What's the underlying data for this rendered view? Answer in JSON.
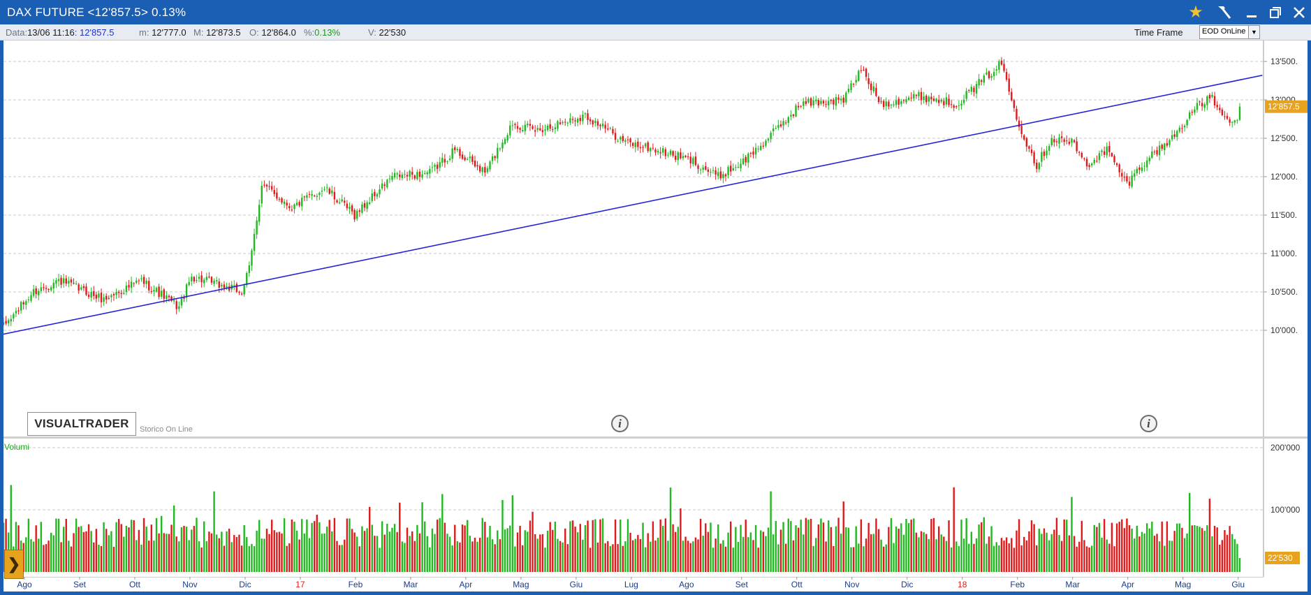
{
  "window": {
    "title": "DAX FUTURE <12'857.5> 0.13%",
    "icons": [
      "star-icon",
      "hammer-icon",
      "minimize-icon",
      "restore-icon",
      "close-icon"
    ]
  },
  "infobar": {
    "data_label": "Data:",
    "data_value": "13/06 11:16",
    "last_value": ": 12'857.5",
    "min_label": "m:",
    "min_value": "12'777.0",
    "max_label": "M:",
    "max_value": "12'873.5",
    "open_label": "O:",
    "open_value": "12'864.0",
    "pct_label": "%:",
    "pct_value": "0.13%",
    "vol_label": "V:",
    "vol_value": "22'530",
    "timeframe_label": "Time Frame",
    "timeframe_value": "EOD OnLine"
  },
  "colors": {
    "up": "#22b822",
    "down": "#e01a1a",
    "trendline": "#2424d8",
    "last_price_tag": "#e7a21e",
    "title_bar": "#1b5fb4"
  },
  "branding": {
    "logo": "VISUALTRADER",
    "storico": "Storico On Line"
  },
  "volume_label": "Volumi",
  "chart_data": [
    {
      "type": "candlestick",
      "title": "DAX FUTURE",
      "ylim": [
        9800,
        13750
      ],
      "y_ticks": [
        "13'500.",
        "13'000.",
        "12'500.",
        "12'000.",
        "11'500.",
        "11'000.",
        "10'500.",
        "10'000."
      ],
      "y_tick_values": [
        13500,
        13000,
        12500,
        12000,
        11500,
        11000,
        10500,
        10000
      ],
      "last_price": "12'857.5",
      "x_month_labels": [
        "Ago",
        "Set",
        "Ott",
        "Nov",
        "Dic",
        "17",
        "Feb",
        "Mar",
        "Apr",
        "Mag",
        "Giu",
        "Lug",
        "Ago",
        "Set",
        "Ott",
        "Nov",
        "Dic",
        "18",
        "Feb",
        "Mar",
        "Apr",
        "Mag",
        "Giu"
      ],
      "x_month_index": [
        0,
        22,
        44,
        66,
        88,
        110,
        132,
        154,
        176,
        198,
        220,
        242,
        264,
        286,
        308,
        330,
        352,
        374,
        396,
        418,
        440,
        462,
        484
      ],
      "year_markers": [
        "17",
        "18"
      ],
      "grid": "dashed horizontal",
      "n_days": 494,
      "close_anchors": [
        [
          0,
          10050
        ],
        [
          12,
          10500
        ],
        [
          22,
          10650
        ],
        [
          40,
          10400
        ],
        [
          55,
          10650
        ],
        [
          70,
          10300
        ],
        [
          75,
          10700
        ],
        [
          95,
          10500
        ],
        [
          98,
          10800
        ],
        [
          103,
          11900
        ],
        [
          115,
          11600
        ],
        [
          128,
          11850
        ],
        [
          140,
          11500
        ],
        [
          155,
          12000
        ],
        [
          170,
          12050
        ],
        [
          180,
          12350
        ],
        [
          192,
          12050
        ],
        [
          203,
          12700
        ],
        [
          212,
          12600
        ],
        [
          232,
          12800
        ],
        [
          248,
          12450
        ],
        [
          260,
          12350
        ],
        [
          275,
          12200
        ],
        [
          285,
          12000
        ],
        [
          295,
          12200
        ],
        [
          305,
          12500
        ],
        [
          318,
          12950
        ],
        [
          335,
          13000
        ],
        [
          342,
          13400
        ],
        [
          350,
          12950
        ],
        [
          365,
          13050
        ],
        [
          380,
          12950
        ],
        [
          392,
          13300
        ],
        [
          398,
          13480
        ],
        [
          402,
          13000
        ],
        [
          406,
          12600
        ],
        [
          412,
          12150
        ],
        [
          418,
          12500
        ],
        [
          426,
          12450
        ],
        [
          432,
          12150
        ],
        [
          440,
          12350
        ],
        [
          448,
          11900
        ],
        [
          455,
          12200
        ],
        [
          466,
          12500
        ],
        [
          474,
          12850
        ],
        [
          482,
          13050
        ],
        [
          486,
          12750
        ],
        [
          491,
          12700
        ],
        [
          493,
          12857
        ]
      ],
      "trendline": {
        "start": {
          "day": 0,
          "price": 9950
        },
        "end": {
          "day": 502,
          "price": 13320
        }
      }
    },
    {
      "type": "bar",
      "title": "Volumi",
      "ylim": [
        0,
        200000
      ],
      "y_ticks": [
        "200'000",
        "100'000"
      ],
      "y_tick_values": [
        200000,
        100000
      ],
      "last_volume": "22'530",
      "series": [
        {
          "name": "Volumi",
          "typical_value": 70000,
          "last_value": 22530
        }
      ]
    }
  ]
}
